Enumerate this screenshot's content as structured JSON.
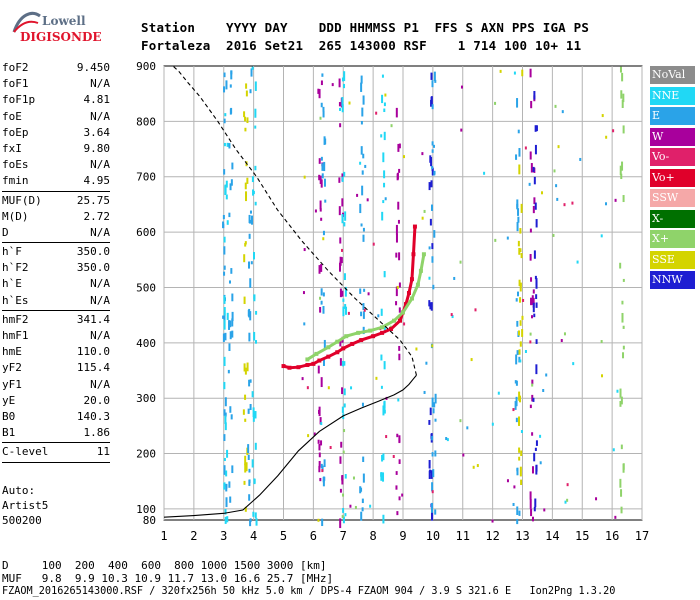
{
  "logo": {
    "lowell": "Lowell",
    "digisonde": "DIGISONDE"
  },
  "header": {
    "line1": "Station    YYYY DAY    DDD HHMMSS P1  FFS S AXN PPS IGA PS",
    "line2": "Fortaleza  2016 Set21  265 143000 RSF    1 714 100 10+ 11"
  },
  "params": [
    {
      "label": "foF2",
      "value": "9.450"
    },
    {
      "label": "foF1",
      "value": "N/A"
    },
    {
      "label": "foF1p",
      "value": "4.81"
    },
    {
      "label": "foE",
      "value": "N/A"
    },
    {
      "label": "foEp",
      "value": "3.64"
    },
    {
      "label": "fxI",
      "value": "9.80"
    },
    {
      "label": "foEs",
      "value": "N/A"
    },
    {
      "label": "fmin",
      "value": "4.95"
    },
    {
      "label": "MUF(D)",
      "value": "25.75"
    },
    {
      "label": "M(D)",
      "value": "2.72"
    },
    {
      "label": "D",
      "value": "N/A"
    },
    {
      "label": "h`F",
      "value": "350.0"
    },
    {
      "label": "h`F2",
      "value": "350.0"
    },
    {
      "label": "h`E",
      "value": "N/A"
    },
    {
      "label": "h`Es",
      "value": "N/A"
    },
    {
      "label": "hmF2",
      "value": "341.4"
    },
    {
      "label": "hmF1",
      "value": "N/A"
    },
    {
      "label": "hmE",
      "value": "110.0"
    },
    {
      "label": "yF2",
      "value": "115.4"
    },
    {
      "label": "yF1",
      "value": "N/A"
    },
    {
      "label": "yE",
      "value": "20.0"
    },
    {
      "label": "B0",
      "value": "140.3"
    },
    {
      "label": "B1",
      "value": "1.86"
    },
    {
      "label": "C-level",
      "value": "11"
    }
  ],
  "auto": {
    "line1": "Auto:",
    "line2": "Artist5",
    "line3": "500200"
  },
  "legend": [
    {
      "label": "NoVal",
      "color": "#8c8c8c"
    },
    {
      "label": "NNE",
      "color": "#20d8f5"
    },
    {
      "label": "E",
      "color": "#2aa3e8"
    },
    {
      "label": "W",
      "color": "#a8009c"
    },
    {
      "label": "Vo-",
      "color": "#e0206a"
    },
    {
      "label": "Vo+",
      "color": "#e0002a"
    },
    {
      "label": "SSW",
      "color": "#f5a8a8"
    },
    {
      "label": "X-",
      "color": "#007000"
    },
    {
      "label": "X+",
      "color": "#8fd36a"
    },
    {
      "label": "SSE",
      "color": "#d4d400"
    },
    {
      "label": "NNW",
      "color": "#1e1ed2"
    }
  ],
  "bottom": {
    "d_line": "D     100  200  400  600  800 1000 1500 3000 [km]",
    "muf_line": "MUF   9.8  9.9 10.3 10.9 11.7 13.0 16.6 25.7 [MHz]",
    "file_line": "FZAOM_2016265143000.RSF / 320fx256h 50 kHz 5.0 km / DPS-4 FZAOM 904 / 3.9 S 321.6 E   Ion2Png 1.3.20"
  },
  "chart_data": {
    "type": "scatter",
    "title": "",
    "xlabel": "",
    "ylabel": "",
    "xlim": [
      1,
      17
    ],
    "ylim": [
      80,
      900
    ],
    "xticks": [
      1,
      2,
      3,
      4,
      5,
      6,
      7,
      8,
      9,
      10,
      11,
      12,
      13,
      14,
      15,
      16,
      17
    ],
    "yticks": [
      80,
      100,
      200,
      300,
      400,
      500,
      600,
      700,
      800,
      900
    ],
    "grid": true,
    "series": [
      {
        "name": "Vo+",
        "x": [
          5.0,
          5.2,
          5.5,
          5.8,
          6.0,
          6.2,
          6.5,
          6.8,
          7.0,
          7.3,
          7.6,
          8.0,
          8.3,
          8.6,
          8.9,
          9.0,
          9.1,
          9.2,
          9.3,
          9.35,
          9.4
        ],
        "y": [
          358,
          355,
          356,
          360,
          362,
          368,
          375,
          383,
          390,
          398,
          405,
          412,
          418,
          425,
          440,
          455,
          470,
          490,
          515,
          560,
          610
        ]
      },
      {
        "name": "X+",
        "x": [
          5.8,
          6.1,
          6.5,
          6.8,
          7.1,
          7.5,
          7.9,
          8.3,
          8.7,
          9.0,
          9.3,
          9.5,
          9.6,
          9.7
        ],
        "y": [
          370,
          380,
          392,
          402,
          412,
          418,
          422,
          428,
          440,
          455,
          480,
          505,
          530,
          560
        ]
      },
      {
        "name": "profile",
        "x": [
          1.0,
          2.0,
          3.0,
          3.64,
          4.2,
          4.81,
          5.5,
          6.2,
          7.0,
          7.6,
          8.2,
          8.7,
          9.0,
          9.2,
          9.35,
          9.45
        ],
        "y": [
          85,
          88,
          92,
          98,
          125,
          160,
          205,
          240,
          268,
          282,
          295,
          306,
          315,
          325,
          335,
          341.4
        ]
      },
      {
        "name": "profile-topside",
        "x": [
          9.45,
          9.3,
          8.9,
          8.2,
          7.4,
          6.5,
          5.6,
          4.8,
          4.1,
          3.4,
          2.8,
          2.2,
          1.8,
          1.5,
          1.3
        ],
        "y": [
          341.4,
          375,
          405,
          440,
          480,
          530,
          585,
          640,
          700,
          750,
          800,
          845,
          870,
          890,
          900
        ]
      }
    ]
  }
}
